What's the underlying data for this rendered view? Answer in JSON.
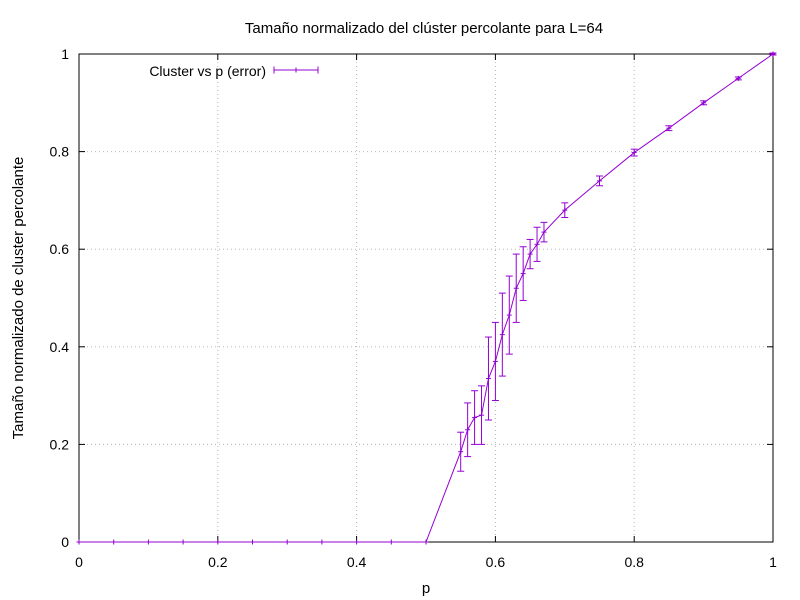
{
  "chart_data": {
    "type": "line",
    "title": "Tamaño normalizado del clúster percolante para L=64",
    "xlabel": "p",
    "ylabel": "Tamaño normalizado de cluster percolante",
    "xlim": [
      0,
      1
    ],
    "ylim": [
      0,
      1
    ],
    "xticks": [
      0,
      0.2,
      0.4,
      0.6,
      0.8,
      1
    ],
    "yticks": [
      0,
      0.2,
      0.4,
      0.6,
      0.8,
      1
    ],
    "xtick_labels": [
      "0",
      "0.2",
      "0.4",
      "0.6",
      "0.8",
      "1"
    ],
    "ytick_labels": [
      "0",
      "0.2",
      "0.4",
      "0.6",
      "0.8",
      "1"
    ],
    "grid": true,
    "legend_position": "top-left",
    "series": [
      {
        "name": "Cluster vs p (error)",
        "color": "#9400d3",
        "x": [
          0,
          0.05,
          0.1,
          0.15,
          0.2,
          0.25,
          0.3,
          0.35,
          0.4,
          0.45,
          0.5,
          0.55,
          0.56,
          0.57,
          0.58,
          0.59,
          0.6,
          0.61,
          0.62,
          0.63,
          0.64,
          0.65,
          0.66,
          0.67,
          0.7,
          0.75,
          0.8,
          0.85,
          0.9,
          0.95,
          1.0
        ],
        "y": [
          0,
          0,
          0,
          0,
          0,
          0,
          0,
          0,
          0,
          0,
          0,
          0.185,
          0.23,
          0.255,
          0.26,
          0.335,
          0.37,
          0.425,
          0.465,
          0.52,
          0.55,
          0.59,
          0.61,
          0.635,
          0.68,
          0.74,
          0.798,
          0.848,
          0.9,
          0.95,
          1.0
        ],
        "yerr": [
          0,
          0,
          0,
          0,
          0,
          0,
          0,
          0,
          0,
          0,
          0,
          0.04,
          0.055,
          0.055,
          0.06,
          0.085,
          0.08,
          0.085,
          0.08,
          0.07,
          0.055,
          0.03,
          0.035,
          0.02,
          0.015,
          0.01,
          0.007,
          0.005,
          0.004,
          0.003,
          0.002
        ]
      }
    ]
  }
}
